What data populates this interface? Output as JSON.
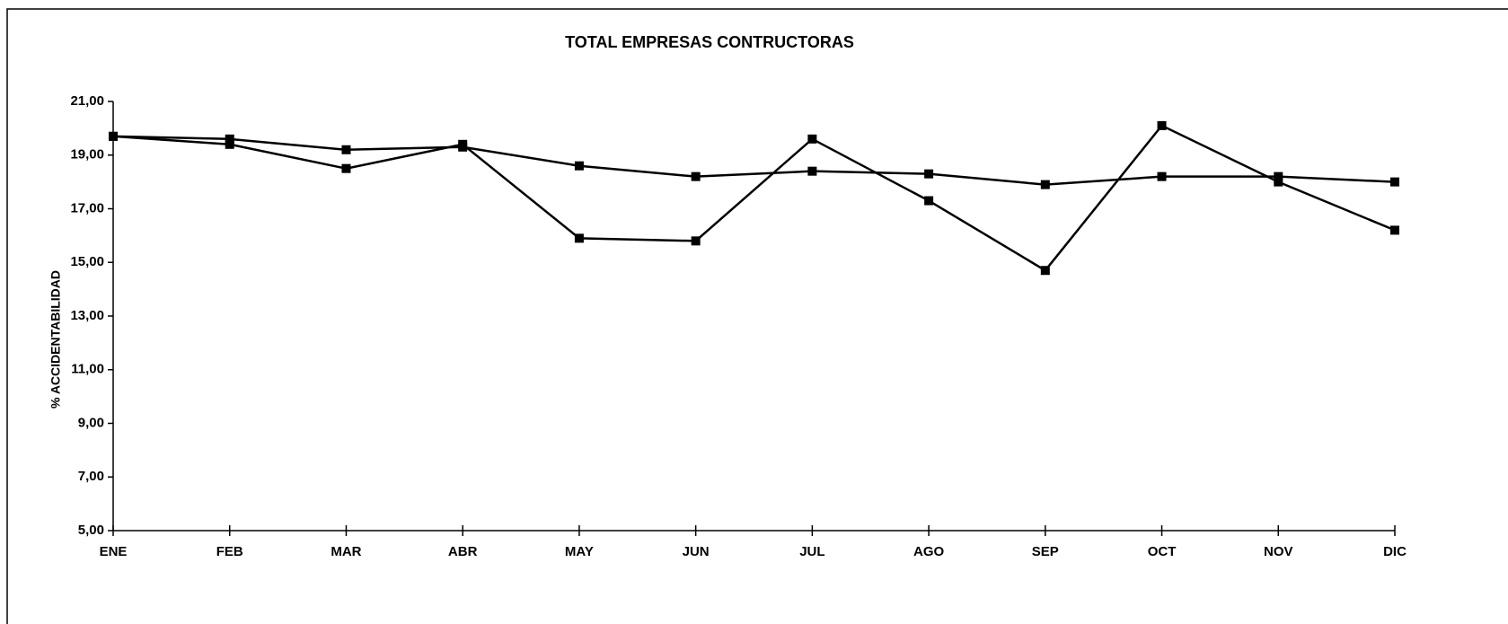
{
  "chart_data": {
    "type": "line",
    "title": "TOTAL  EMPRESAS CONTRUCTORAS",
    "y_label": "% ACCIDENTABILIDAD",
    "categories": [
      "ENE",
      "FEB",
      "MAR",
      "ABR",
      "MAY",
      "JUN",
      "JUL",
      "AGO",
      "SEP",
      "OCT",
      "NOV",
      "DIC"
    ],
    "series": [
      {
        "color": "#000000",
        "values": [
          19.7,
          19.4,
          18.5,
          19.4,
          15.9,
          15.8,
          19.6,
          17.3,
          14.7,
          20.1,
          18.0,
          16.2
        ]
      },
      {
        "color": "#000000",
        "values": [
          19.7,
          19.6,
          19.2,
          19.3,
          18.6,
          18.2,
          18.4,
          18.3,
          17.9,
          18.2,
          18.2,
          18.0
        ]
      }
    ],
    "ylim": [
      5,
      21
    ],
    "yticks": [
      {
        "value": 5,
        "label": "5,00"
      },
      {
        "value": 7,
        "label": "7,00"
      },
      {
        "value": 9,
        "label": "9,00"
      },
      {
        "value": 11,
        "label": "11,00"
      },
      {
        "value": 13,
        "label": "13,00"
      },
      {
        "value": 15,
        "label": "15,00"
      },
      {
        "value": 17,
        "label": "17,00"
      },
      {
        "value": 19,
        "label": "19,00"
      },
      {
        "value": 21,
        "label": "21,00"
      }
    ],
    "grid": false
  }
}
